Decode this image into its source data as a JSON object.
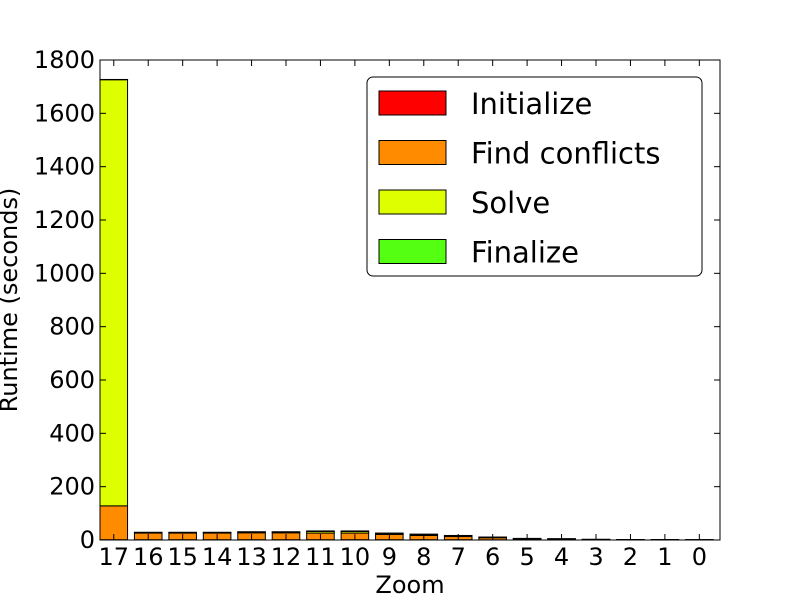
{
  "chart_data": {
    "type": "bar",
    "stacked": true,
    "title": "",
    "xlabel": "Zoom",
    "ylabel": "Runtime (seconds)",
    "ylim": [
      0,
      1800
    ],
    "yticks": [
      0,
      200,
      400,
      600,
      800,
      1000,
      1200,
      1400,
      1600,
      1800
    ],
    "categories": [
      "17",
      "16",
      "15",
      "14",
      "13",
      "12",
      "11",
      "10",
      "9",
      "8",
      "7",
      "6",
      "5",
      "4",
      "3",
      "2",
      "1",
      "0"
    ],
    "series": [
      {
        "name": "Initialize",
        "color": "#ff0000",
        "values": [
          1,
          1,
          1,
          1,
          1,
          1,
          1,
          1,
          1,
          1,
          1,
          0.5,
          0.5,
          0.5,
          0.3,
          0.3,
          0.3,
          0.3
        ]
      },
      {
        "name": "Find conflicts",
        "color": "#ff8c00",
        "values": [
          127,
          25,
          25,
          25,
          26,
          26,
          25,
          25,
          20,
          16,
          12,
          8,
          4,
          3,
          1.5,
          1,
          0.8,
          0.5
        ]
      },
      {
        "name": "Solve",
        "color": "#ddff00",
        "values": [
          1598,
          2,
          2,
          2,
          3,
          3,
          6,
          6,
          4,
          4,
          3,
          2,
          1,
          1,
          0.5,
          0.3,
          0.3,
          0.2
        ]
      },
      {
        "name": "Finalize",
        "color": "#55ff11",
        "values": [
          1,
          1,
          1,
          1,
          1,
          1,
          2,
          2,
          1,
          1,
          1,
          0.5,
          0.5,
          0.3,
          0.2,
          0.2,
          0.1,
          0.1
        ]
      }
    ],
    "legend_position": "top-right",
    "grid": false
  }
}
